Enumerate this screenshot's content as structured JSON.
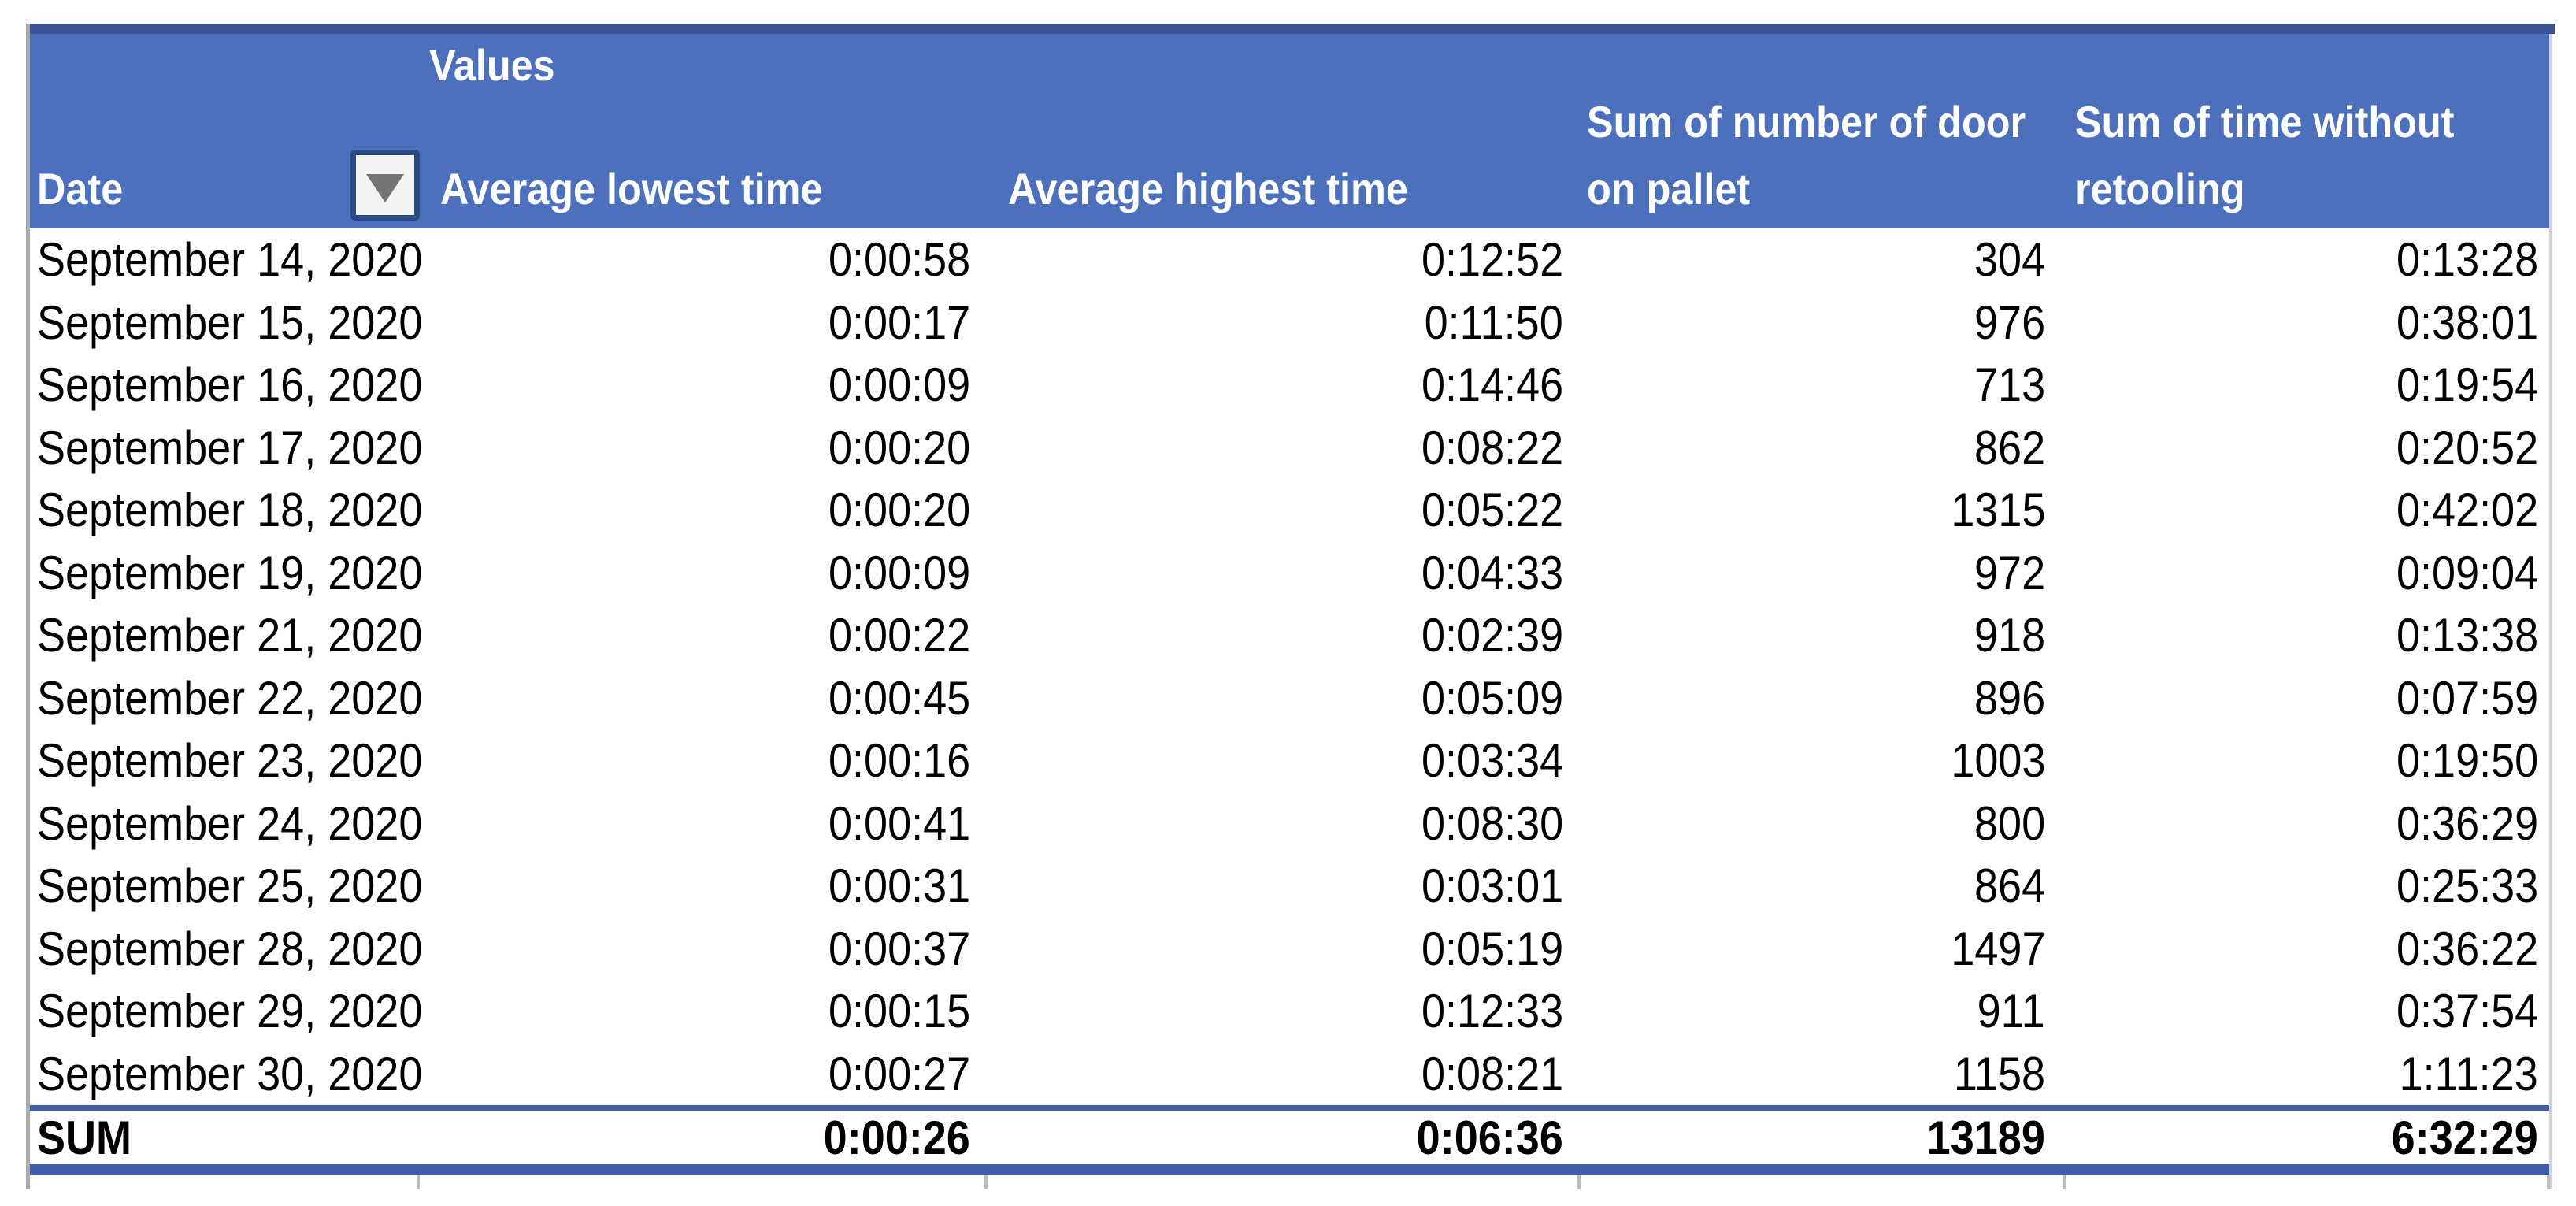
{
  "pivot_table": {
    "values_label": "Values",
    "columns": {
      "date": {
        "label": "Date"
      },
      "avg_lowest": {
        "label": "Average lowest time"
      },
      "avg_highest": {
        "label": "Average highest time"
      },
      "sum_doors": {
        "line1": "Sum of number of door",
        "line2": "on pallet"
      },
      "sum_no_retooling": {
        "line1": "Sum of time without",
        "line2": "retooling"
      }
    },
    "rows": [
      [
        "September 14, 2020",
        "0:00:58",
        "0:12:52",
        "304",
        "0:13:28"
      ],
      [
        "September 15, 2020",
        "0:00:17",
        "0:11:50",
        "976",
        "0:38:01"
      ],
      [
        "September 16, 2020",
        "0:00:09",
        "0:14:46",
        "713",
        "0:19:54"
      ],
      [
        "September 17, 2020",
        "0:00:20",
        "0:08:22",
        "862",
        "0:20:52"
      ],
      [
        "September 18, 2020",
        "0:00:20",
        "0:05:22",
        "1315",
        "0:42:02"
      ],
      [
        "September 19, 2020",
        "0:00:09",
        "0:04:33",
        "972",
        "0:09:04"
      ],
      [
        "September 21, 2020",
        "0:00:22",
        "0:02:39",
        "918",
        "0:13:38"
      ],
      [
        "September 22, 2020",
        "0:00:45",
        "0:05:09",
        "896",
        "0:07:59"
      ],
      [
        "September 23, 2020",
        "0:00:16",
        "0:03:34",
        "1003",
        "0:19:50"
      ],
      [
        "September 24, 2020",
        "0:00:41",
        "0:08:30",
        "800",
        "0:36:29"
      ],
      [
        "September 25, 2020",
        "0:00:31",
        "0:03:01",
        "864",
        "0:25:33"
      ],
      [
        "September 28, 2020",
        "0:00:37",
        "0:05:19",
        "1497",
        "0:36:22"
      ],
      [
        "September 29, 2020",
        "0:00:15",
        "0:12:33",
        "911",
        "0:37:54"
      ],
      [
        "September 30, 2020",
        "0:00:27",
        "0:08:21",
        "1158",
        "1:11:23"
      ]
    ],
    "sum_row": {
      "label": "SUM",
      "avg_lowest": "0:00:26",
      "avg_highest": "0:06:36",
      "sum_doors": "13189",
      "sum_no_retooling": "6:32:29"
    },
    "colors": {
      "header_fill": "#4D70BC",
      "top_strip": "#3A5494",
      "sum_borders": "#3E5EA9",
      "header_text": "#FFFFFF",
      "body_text": "#000000",
      "filter_button_border": "#2B4983",
      "filter_button_fill": "#F4F4F4",
      "filter_arrow": "#757575"
    }
  }
}
